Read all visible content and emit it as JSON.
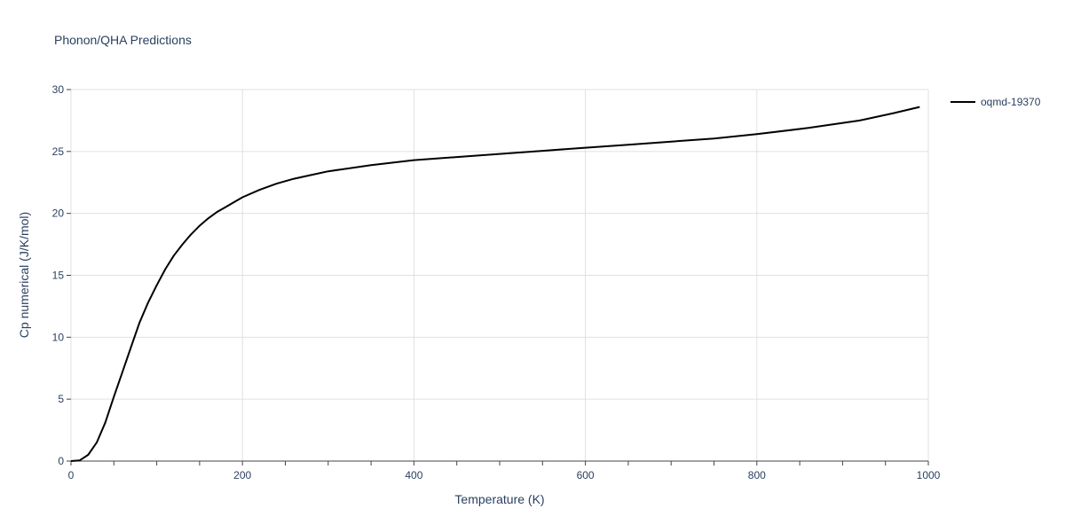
{
  "chart_data": {
    "type": "line",
    "title": "Phonon/QHA Predictions",
    "xlabel": "Temperature (K)",
    "ylabel": "Cp numerical (J/K/mol)",
    "xlim": [
      0,
      1000
    ],
    "ylim": [
      0,
      30
    ],
    "xticks": [
      0,
      200,
      400,
      600,
      800,
      1000
    ],
    "yticks": [
      0,
      5,
      10,
      15,
      20,
      25,
      30
    ],
    "grid": true,
    "legend_position": "top-right",
    "series": [
      {
        "name": "oqmd-19370",
        "color": "#000000",
        "x": [
          0,
          10,
          20,
          30,
          40,
          50,
          60,
          70,
          80,
          90,
          100,
          110,
          120,
          130,
          140,
          150,
          160,
          170,
          180,
          190,
          200,
          220,
          240,
          260,
          280,
          300,
          350,
          400,
          450,
          500,
          550,
          600,
          650,
          700,
          750,
          800,
          860,
          920,
          960,
          990
        ],
        "y": [
          0,
          0.05,
          0.5,
          1.5,
          3.1,
          5.2,
          7.2,
          9.2,
          11.2,
          12.8,
          14.2,
          15.5,
          16.6,
          17.5,
          18.3,
          19.0,
          19.6,
          20.1,
          20.5,
          20.9,
          21.3,
          21.9,
          22.4,
          22.8,
          23.1,
          23.4,
          23.9,
          24.3,
          24.55,
          24.8,
          25.05,
          25.3,
          25.55,
          25.8,
          26.05,
          26.4,
          26.9,
          27.5,
          28.1,
          28.6
        ]
      }
    ]
  }
}
